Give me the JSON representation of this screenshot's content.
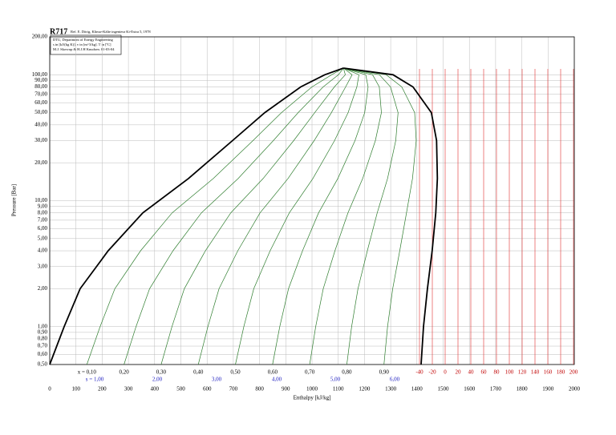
{
  "chart_data": {
    "type": "line",
    "title": "R717",
    "reference": "Ref. E. Dörig, Klima+Kälte ingenieur Ki-Extra 5, 1978",
    "info": [
      "DTU, Department of Energy Engineering",
      "s in [kJ/(kg K)]. v in [m^3/kg]. T in [ºC]",
      "M.J. Skovrup & H.J.H Knudsen. 01-03-04"
    ],
    "x_label": "Enthalpy [kJ/kg]",
    "y_label": "Pressure [Bar]",
    "log_y": true,
    "grid": true,
    "xlim": [
      0,
      2000
    ],
    "xticks": [
      0,
      100,
      200,
      300,
      400,
      500,
      600,
      700,
      800,
      900,
      1000,
      1100,
      1200,
      1300,
      1400,
      1500,
      1600,
      1700,
      1800,
      1900,
      2000
    ],
    "ylim": [
      0.5,
      200
    ],
    "yticks": [
      {
        "value": 0.5,
        "label": "0,50"
      },
      {
        "value": 0.6,
        "label": "0,60"
      },
      {
        "value": 0.7,
        "label": "0,70"
      },
      {
        "value": 0.8,
        "label": "0,80"
      },
      {
        "value": 0.9,
        "label": "0,90"
      },
      {
        "value": 1,
        "label": "1,00"
      },
      {
        "value": 2,
        "label": "2,00"
      },
      {
        "value": 3,
        "label": "3,00"
      },
      {
        "value": 4,
        "label": "4,00"
      },
      {
        "value": 5,
        "label": "5,00"
      },
      {
        "value": 6,
        "label": "6,00"
      },
      {
        "value": 7,
        "label": "7,00"
      },
      {
        "value": 8,
        "label": "8,00"
      },
      {
        "value": 9,
        "label": "9,00"
      },
      {
        "value": 10,
        "label": "10,00"
      },
      {
        "value": 20,
        "label": "20,00"
      },
      {
        "value": 30,
        "label": "30,00"
      },
      {
        "value": 40,
        "label": "40,00"
      },
      {
        "value": 50,
        "label": "50,00"
      },
      {
        "value": 60,
        "label": "60,00"
      },
      {
        "value": 70,
        "label": "70,00"
      },
      {
        "value": 80,
        "label": "80,00"
      },
      {
        "value": 90,
        "label": "90,00"
      },
      {
        "value": 100,
        "label": "100,00"
      },
      {
        "value": 200,
        "label": "200,00"
      }
    ],
    "series": [
      {
        "color": "#000000",
        "x": [
          0,
          55,
          116,
          223,
          355,
          529,
          697,
          820,
          957,
          1049,
          1120
        ],
        "values": [
          0.5,
          1,
          2,
          4,
          8,
          15,
          30,
          50,
          80,
          100,
          113
        ]
      },
      {
        "color": "#000000",
        "x": [
          1416,
          1425,
          1440,
          1458,
          1472,
          1478,
          1475,
          1455,
          1385,
          1309,
          1120
        ],
        "values": [
          0.5,
          1,
          2,
          4,
          8,
          15,
          30,
          50,
          80,
          100,
          113
        ]
      }
    ],
    "quality_lines": [
      {
        "value": 0.1,
        "label": "x = 0,10"
      },
      {
        "value": 0.2,
        "label": "0,20"
      },
      {
        "value": 0.3,
        "label": "0,30"
      },
      {
        "value": 0.4,
        "label": "0,40"
      },
      {
        "value": 0.5,
        "label": "0,50"
      },
      {
        "value": 0.6,
        "label": "0,60"
      },
      {
        "value": 0.7,
        "label": "0,70"
      },
      {
        "value": 0.8,
        "label": "0,80"
      },
      {
        "value": 0.9,
        "label": "0,90"
      }
    ],
    "entropy_labels": [
      "s = 1,00",
      "2,00",
      "3,00",
      "4,00",
      "5,00",
      "6,00"
    ],
    "temperature_labels": [
      -40,
      -20,
      0,
      20,
      40,
      60,
      80,
      100,
      120,
      140,
      160,
      180,
      200
    ]
  }
}
